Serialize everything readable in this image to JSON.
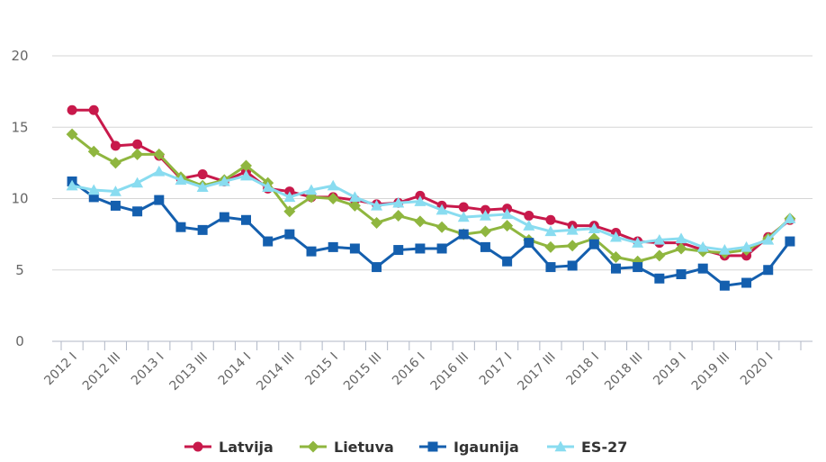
{
  "chart_data": {
    "type": "line",
    "ylim": [
      0,
      20
    ],
    "yticks": [
      0,
      5,
      10,
      15,
      20
    ],
    "grid": true,
    "legend_position": "bottom-center",
    "x": [
      "2012 I",
      "2012 II",
      "2012 III",
      "2012 IV",
      "2013 I",
      "2013 II",
      "2013 III",
      "2013 IV",
      "2014 I",
      "2014 II",
      "2014 III",
      "2014 IV",
      "2015 I",
      "2015 II",
      "2015 III",
      "2015 IV",
      "2016 I",
      "2016 II",
      "2016 III",
      "2016 IV",
      "2017 I",
      "2017 II",
      "2017 III",
      "2017 IV",
      "2018 I",
      "2018 II",
      "2018 III",
      "2018 IV",
      "2019 I",
      "2019 II",
      "2019 III",
      "2019 IV",
      "2020 I",
      "2020 II"
    ],
    "xtick_labels": [
      "2012 I",
      "2012 III",
      "2013 I",
      "2013 III",
      "2014 I",
      "2014 III",
      "2015 I",
      "2015 III",
      "2016 I",
      "2016 III",
      "2017 I",
      "2017 III",
      "2018 I",
      "2018 III",
      "2019 I",
      "2019 III",
      "2020 I"
    ],
    "series": [
      {
        "name": "Latvija",
        "color": "#c8194b",
        "marker": "circle",
        "values": [
          16.2,
          16.2,
          13.7,
          13.8,
          13.0,
          11.4,
          11.7,
          11.2,
          11.9,
          10.7,
          10.5,
          10.1,
          10.1,
          9.9,
          9.6,
          9.7,
          10.2,
          9.5,
          9.4,
          9.2,
          9.3,
          8.8,
          8.5,
          8.1,
          8.1,
          7.6,
          7.0,
          6.9,
          6.9,
          6.4,
          6.0,
          6.0,
          7.3,
          8.5
        ]
      },
      {
        "name": "Lietuva",
        "color": "#8fb63f",
        "marker": "diamond",
        "values": [
          14.5,
          13.3,
          12.5,
          13.1,
          13.1,
          11.5,
          10.9,
          11.3,
          12.3,
          11.1,
          9.1,
          10.1,
          10.0,
          9.5,
          8.3,
          8.8,
          8.4,
          8.0,
          7.5,
          7.7,
          8.1,
          7.1,
          6.6,
          6.7,
          7.2,
          5.9,
          5.6,
          6.0,
          6.5,
          6.3,
          6.2,
          6.4,
          7.2,
          8.6
        ]
      },
      {
        "name": "Igaunija",
        "color": "#145fae",
        "marker": "square",
        "values": [
          11.2,
          10.1,
          9.5,
          9.1,
          9.9,
          8.0,
          7.8,
          8.7,
          8.5,
          7.0,
          7.5,
          6.3,
          6.6,
          6.5,
          5.2,
          6.4,
          6.5,
          6.5,
          7.5,
          6.6,
          5.6,
          6.9,
          5.2,
          5.3,
          6.8,
          5.1,
          5.2,
          4.4,
          4.7,
          5.1,
          3.9,
          4.1,
          5.0,
          7.0
        ]
      },
      {
        "name": "ES-27",
        "color": "#89dcf0",
        "marker": "triangle",
        "values": [
          10.9,
          10.6,
          10.5,
          11.1,
          11.9,
          11.3,
          10.8,
          11.2,
          11.6,
          10.8,
          10.1,
          10.6,
          10.9,
          10.1,
          9.5,
          9.7,
          9.8,
          9.2,
          8.7,
          8.8,
          8.9,
          8.1,
          7.7,
          7.8,
          7.9,
          7.3,
          6.9,
          7.1,
          7.2,
          6.6,
          6.4,
          6.6,
          7.1,
          8.6
        ]
      }
    ]
  }
}
